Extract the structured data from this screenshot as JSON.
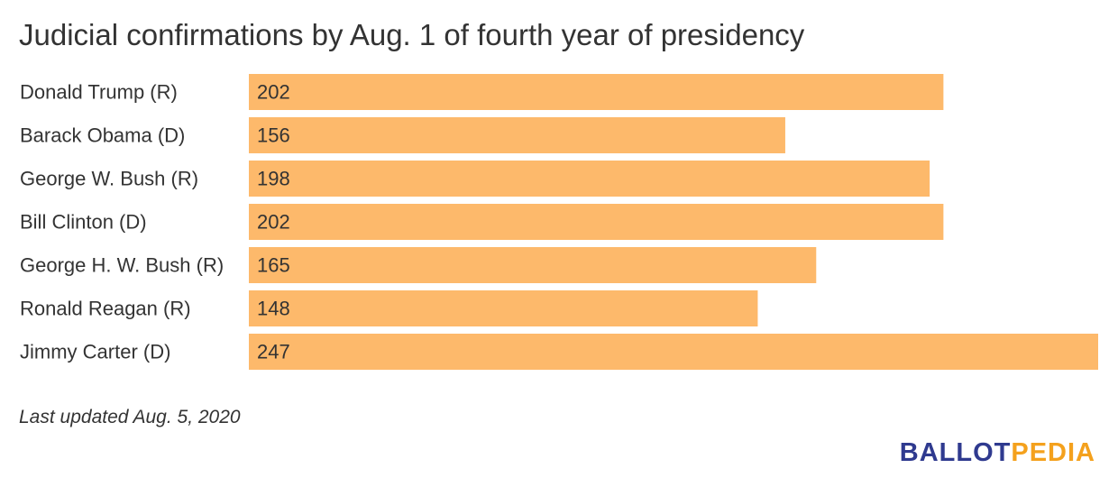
{
  "chart_data": {
    "type": "bar",
    "orientation": "horizontal",
    "title": "Judicial confirmations by Aug. 1 of fourth year of presidency",
    "categories": [
      "Donald Trump (R)",
      "Barack Obama (D)",
      "George W. Bush (R)",
      "Bill Clinton (D)",
      "George H. W. Bush (R)",
      "Ronald Reagan (R)",
      "Jimmy Carter (D)"
    ],
    "values": [
      202,
      156,
      198,
      202,
      165,
      148,
      247
    ],
    "data_labels": [
      "202",
      "156",
      "198",
      "202",
      "165",
      "148",
      "247"
    ],
    "xlim": [
      0,
      247
    ],
    "bar_color": "#fdb96b",
    "text_color": "#333333",
    "grid": false,
    "legend": "none"
  },
  "footnote": "Last updated Aug. 5, 2020",
  "logo": {
    "part1": "BALLOT",
    "part2": "PEDIA",
    "color1": "#2f3a8f",
    "color2": "#f4a11d"
  }
}
